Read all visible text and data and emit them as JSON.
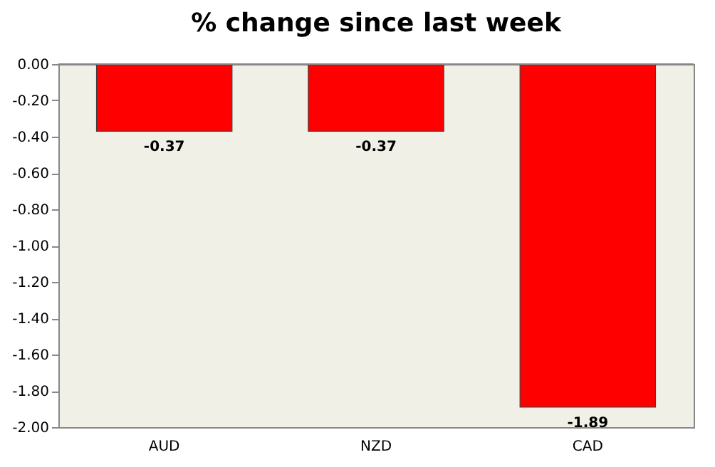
{
  "chart_data": {
    "type": "bar",
    "title": "% change since last week",
    "categories": [
      "AUD",
      "NZD",
      "CAD"
    ],
    "values": [
      -0.37,
      -0.37,
      -1.89
    ],
    "color": "#ff0000",
    "ylim": [
      -2,
      0
    ],
    "yticks": [
      {
        "value": 0,
        "label": "0.00"
      },
      {
        "value": -0.2,
        "label": "-0.20"
      },
      {
        "value": -0.4,
        "label": "-0.40"
      },
      {
        "value": -0.6,
        "label": "-0.60"
      },
      {
        "value": -0.8,
        "label": "-0.80"
      },
      {
        "value": -1.0,
        "label": "-1.00"
      },
      {
        "value": -1.2,
        "label": "-1.20"
      },
      {
        "value": -1.4,
        "label": "-1.40"
      },
      {
        "value": -1.6,
        "label": "-1.60"
      },
      {
        "value": -1.8,
        "label": "-1.80"
      },
      {
        "value": -2.0,
        "label": "-2.00"
      }
    ],
    "data_labels": true,
    "grid": false
  }
}
